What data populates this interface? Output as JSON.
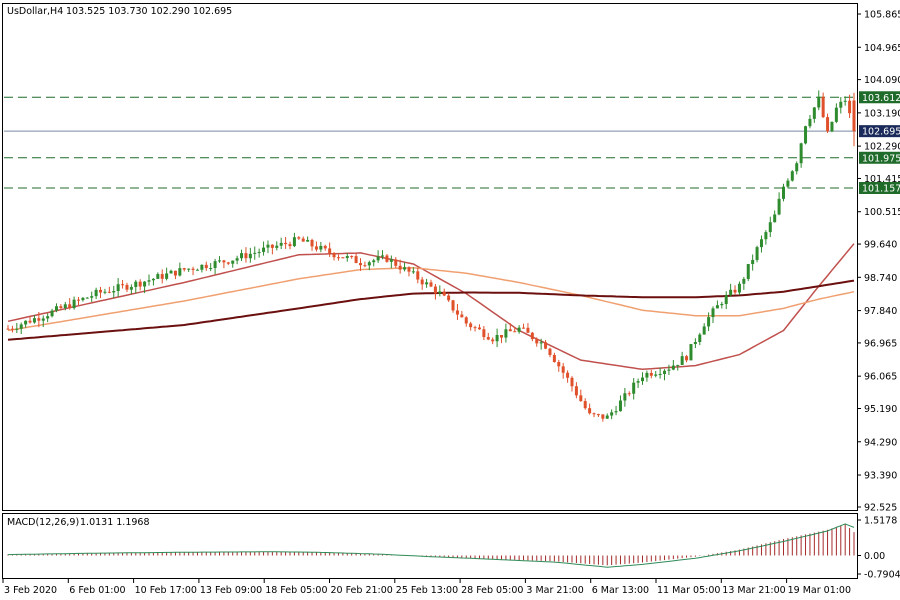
{
  "header": {
    "symbol": "UsDollar,H4",
    "ohlc": "103.525 103.730 102.290 102.695"
  },
  "macd_header": {
    "name": "MACD(12,26,9)",
    "values": "1.0131 1.1968"
  },
  "colors": {
    "bull": "#2e8b2e",
    "bear": "#e0502a",
    "ma_fast": "#c0504d",
    "ma_mid": "#f0a070",
    "ma_slow": "#6b0f0f",
    "level_line": "#1f6b2a",
    "macd_hist": "#a52a2a",
    "macd_signal": "#2e8b57",
    "current_price_badge": "#1a2a5a"
  },
  "chart_data": {
    "type": "candlestick",
    "ylim": [
      92.525,
      105.865
    ],
    "y_ticks": [
      {
        "value": 105.865,
        "label": "105.865"
      },
      {
        "value": 104.965,
        "label": "104.965"
      },
      {
        "value": 104.09,
        "label": "104.090"
      },
      {
        "value": 103.19,
        "label": "103.190"
      },
      {
        "value": 102.29,
        "label": "102.290"
      },
      {
        "value": 101.415,
        "label": "101.415"
      },
      {
        "value": 100.515,
        "label": "100.515"
      },
      {
        "value": 99.64,
        "label": "99.640"
      },
      {
        "value": 98.74,
        "label": "98.740"
      },
      {
        "value": 97.84,
        "label": "97.840"
      },
      {
        "value": 96.965,
        "label": "96.965"
      },
      {
        "value": 96.065,
        "label": "96.065"
      },
      {
        "value": 95.19,
        "label": "95.190"
      },
      {
        "value": 94.29,
        "label": "94.290"
      },
      {
        "value": 93.39,
        "label": "93.390"
      },
      {
        "value": 92.525,
        "label": "92.525"
      }
    ],
    "x_ticks": [
      "3 Feb 2020",
      "6 Feb 01:00",
      "10 Feb 17:00",
      "13 Feb 09:00",
      "18 Feb 05:00",
      "20 Feb 21:00",
      "25 Feb 13:00",
      "28 Feb 05:00",
      "3 Mar 21:00",
      "6 Mar 13:00",
      "11 Mar 05:00",
      "13 Mar 21:00",
      "19 Mar 01:00"
    ],
    "levels": [
      {
        "value": 103.612,
        "label": "103.612",
        "style": "dashed"
      },
      {
        "value": 101.975,
        "label": "101.975",
        "style": "dashed"
      },
      {
        "value": 101.157,
        "label": "101.157",
        "style": "dashed"
      }
    ],
    "current_price": {
      "value": 102.695,
      "label": "102.695"
    },
    "close_path": [
      {
        "i": 0,
        "v": 97.35
      },
      {
        "i": 10,
        "v": 97.8
      },
      {
        "i": 20,
        "v": 98.3
      },
      {
        "i": 30,
        "v": 98.6
      },
      {
        "i": 40,
        "v": 98.95
      },
      {
        "i": 50,
        "v": 99.2
      },
      {
        "i": 60,
        "v": 99.55
      },
      {
        "i": 66,
        "v": 99.75
      },
      {
        "i": 72,
        "v": 99.45
      },
      {
        "i": 80,
        "v": 99.15
      },
      {
        "i": 86,
        "v": 99.25
      },
      {
        "i": 92,
        "v": 98.8
      },
      {
        "i": 98,
        "v": 98.3
      },
      {
        "i": 104,
        "v": 97.5
      },
      {
        "i": 110,
        "v": 97.1
      },
      {
        "i": 116,
        "v": 97.35
      },
      {
        "i": 122,
        "v": 96.9
      },
      {
        "i": 128,
        "v": 95.8
      },
      {
        "i": 132,
        "v": 95.0
      },
      {
        "i": 136,
        "v": 94.95
      },
      {
        "i": 140,
        "v": 95.5
      },
      {
        "i": 144,
        "v": 96.1
      },
      {
        "i": 150,
        "v": 96.3
      },
      {
        "i": 154,
        "v": 96.6
      },
      {
        "i": 158,
        "v": 97.5
      },
      {
        "i": 162,
        "v": 98.1
      },
      {
        "i": 166,
        "v": 98.5
      },
      {
        "i": 170,
        "v": 99.5
      },
      {
        "i": 174,
        "v": 100.4
      },
      {
        "i": 176,
        "v": 101.2
      },
      {
        "i": 179,
        "v": 101.9
      },
      {
        "i": 181,
        "v": 102.9
      },
      {
        "i": 184,
        "v": 103.55
      },
      {
        "i": 186,
        "v": 102.6
      },
      {
        "i": 188,
        "v": 103.3
      },
      {
        "i": 190,
        "v": 103.55
      },
      {
        "i": 192,
        "v": 102.7
      }
    ],
    "moving_averages": [
      {
        "name": "ma_fast",
        "points": [
          [
            0,
            97.55
          ],
          [
            40,
            98.6
          ],
          [
            66,
            99.35
          ],
          [
            80,
            99.4
          ],
          [
            92,
            99.1
          ],
          [
            104,
            98.3
          ],
          [
            116,
            97.3
          ],
          [
            130,
            96.5
          ],
          [
            144,
            96.25
          ],
          [
            156,
            96.35
          ],
          [
            166,
            96.65
          ],
          [
            176,
            97.3
          ],
          [
            184,
            98.5
          ],
          [
            192,
            99.65
          ]
        ]
      },
      {
        "name": "ma_mid",
        "points": [
          [
            0,
            97.3
          ],
          [
            40,
            98.1
          ],
          [
            66,
            98.7
          ],
          [
            80,
            98.95
          ],
          [
            92,
            99.0
          ],
          [
            104,
            98.85
          ],
          [
            116,
            98.6
          ],
          [
            130,
            98.25
          ],
          [
            144,
            97.85
          ],
          [
            156,
            97.7
          ],
          [
            166,
            97.7
          ],
          [
            176,
            97.9
          ],
          [
            184,
            98.15
          ],
          [
            192,
            98.35
          ]
        ]
      },
      {
        "name": "ma_slow",
        "points": [
          [
            0,
            97.05
          ],
          [
            40,
            97.45
          ],
          [
            66,
            97.9
          ],
          [
            80,
            98.15
          ],
          [
            92,
            98.3
          ],
          [
            104,
            98.33
          ],
          [
            116,
            98.32
          ],
          [
            130,
            98.25
          ],
          [
            144,
            98.2
          ],
          [
            156,
            98.2
          ],
          [
            166,
            98.25
          ],
          [
            176,
            98.35
          ],
          [
            184,
            98.5
          ],
          [
            192,
            98.65
          ]
        ]
      }
    ],
    "macd": {
      "ylim": [
        -0.7904,
        1.5178
      ],
      "ticks": [
        {
          "value": 1.5178,
          "label": "1.5178"
        },
        {
          "value": 0,
          "label": "0.00"
        },
        {
          "value": -0.7904,
          "label": "-0.7904"
        }
      ],
      "hist_path": [
        [
          0,
          0.05
        ],
        [
          20,
          0.1
        ],
        [
          40,
          0.13
        ],
        [
          60,
          0.16
        ],
        [
          70,
          0.15
        ],
        [
          84,
          0.06
        ],
        [
          96,
          -0.05
        ],
        [
          110,
          -0.15
        ],
        [
          124,
          -0.25
        ],
        [
          136,
          -0.42
        ],
        [
          144,
          -0.3
        ],
        [
          156,
          -0.05
        ],
        [
          166,
          0.25
        ],
        [
          176,
          0.7
        ],
        [
          186,
          1.1
        ],
        [
          190,
          1.35
        ],
        [
          192,
          1.0
        ]
      ],
      "signal_path": [
        [
          0,
          0.04
        ],
        [
          20,
          0.1
        ],
        [
          40,
          0.14
        ],
        [
          60,
          0.16
        ],
        [
          70,
          0.14
        ],
        [
          84,
          0.06
        ],
        [
          96,
          -0.05
        ],
        [
          110,
          -0.16
        ],
        [
          124,
          -0.28
        ],
        [
          136,
          -0.5
        ],
        [
          144,
          -0.38
        ],
        [
          156,
          -0.12
        ],
        [
          166,
          0.2
        ],
        [
          176,
          0.6
        ],
        [
          186,
          1.05
        ],
        [
          190,
          1.35
        ],
        [
          192,
          1.2
        ]
      ]
    }
  }
}
